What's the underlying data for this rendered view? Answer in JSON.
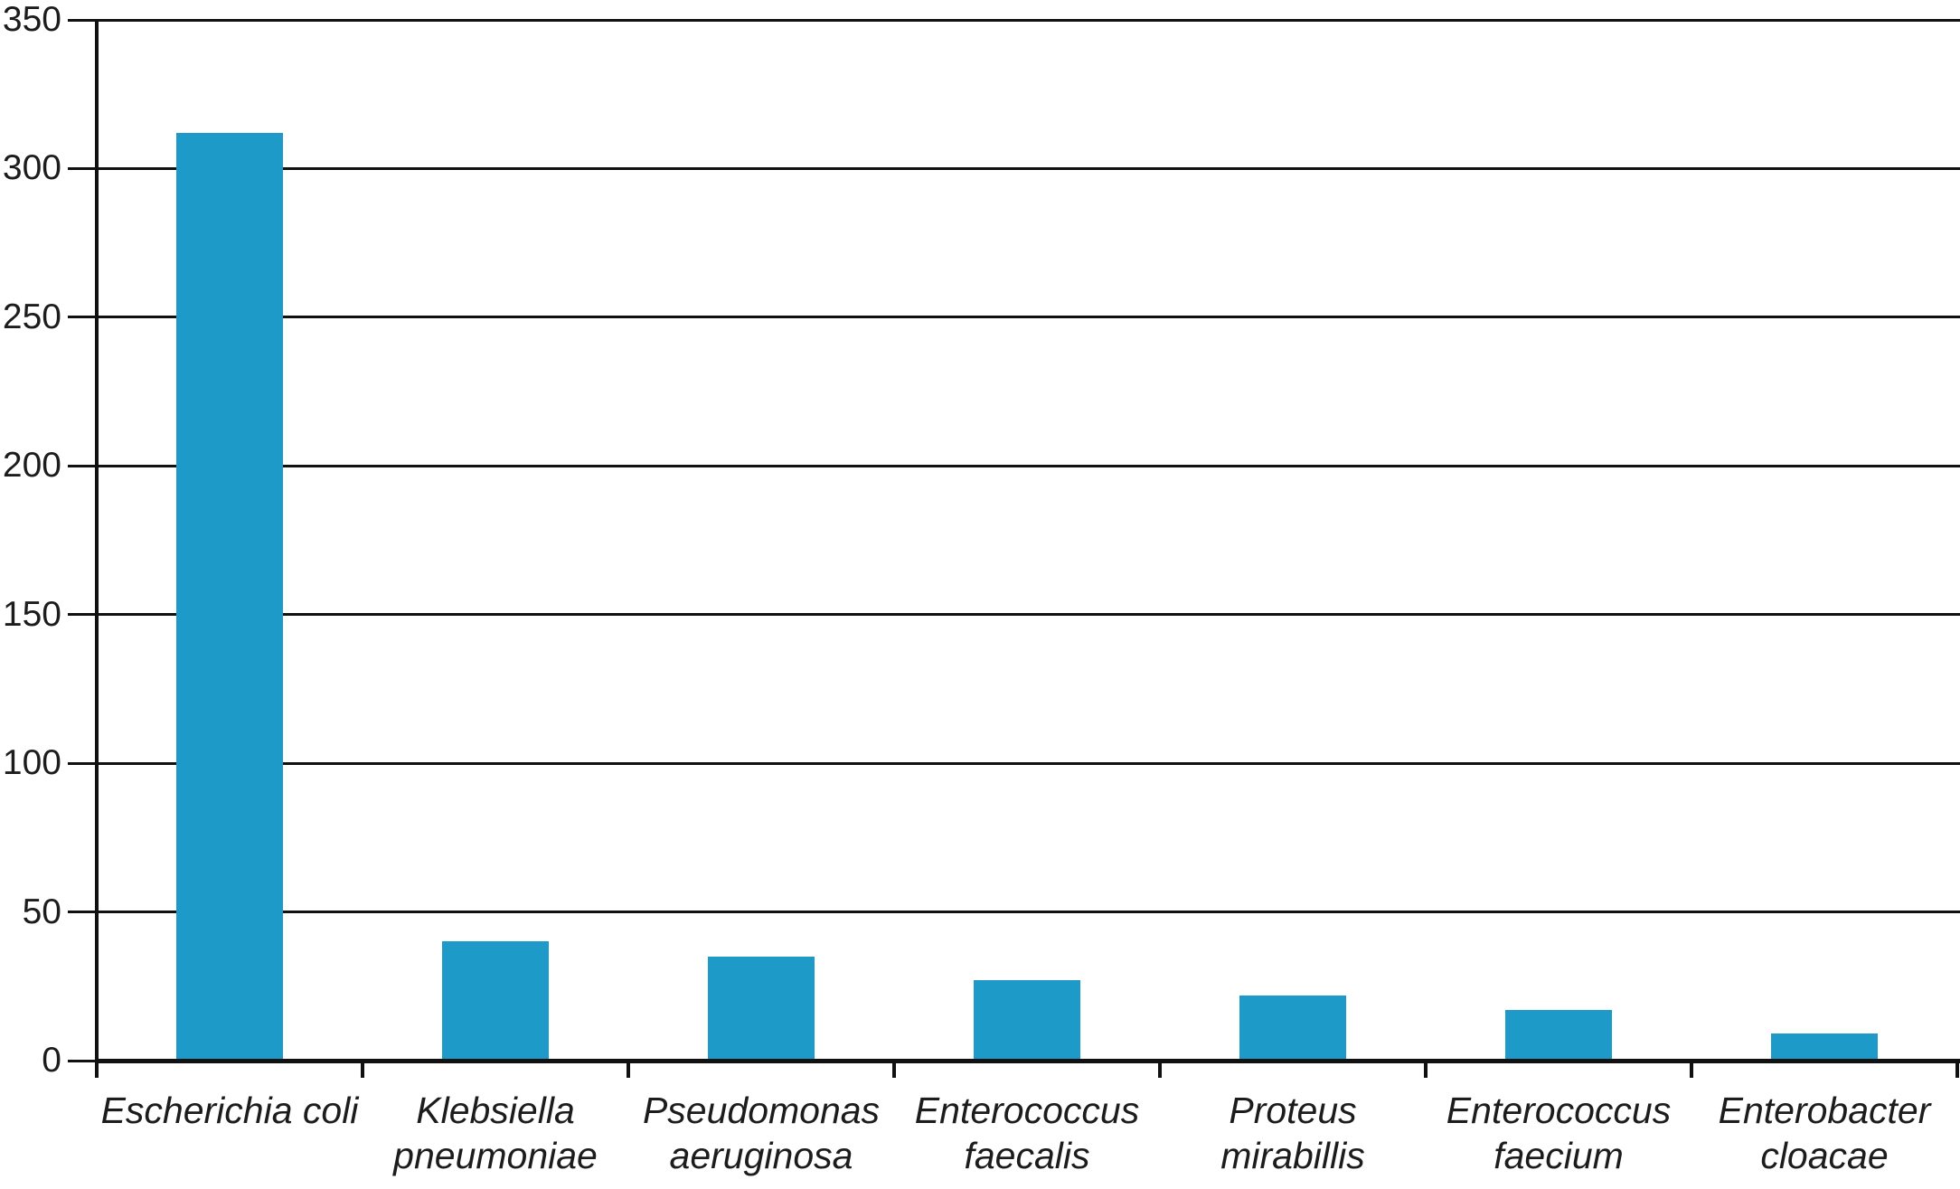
{
  "chart_data": {
    "type": "bar",
    "title": "",
    "xlabel": "",
    "ylabel": "",
    "categories": [
      "Escherichia coli",
      "Klebsiella pneumoniae",
      "Pseudomonas aeruginosa",
      "Enterococcus faecalis",
      "Proteus mirabillis",
      "Enterococcus faecium",
      "Enterobacter cloacae"
    ],
    "tick_labels": [
      "Escherichia coli",
      "Klebsiella\npneumoniae",
      "Pseudomonas\naeruginosa",
      "Enterococcus\nfaecalis",
      "Proteus\nmirabillis",
      "Enterococcus\nfaecium",
      "Enterobacter\ncloacae"
    ],
    "values": [
      312,
      40,
      35,
      27,
      22,
      17,
      9
    ],
    "ylim": [
      0,
      350
    ],
    "yticks": [
      0,
      50,
      100,
      150,
      200,
      250,
      300,
      350
    ],
    "grid": true,
    "legend": "none",
    "tick_label_style": "italic",
    "colors": {
      "bar": "#1E9AC8",
      "axis": "#111111",
      "grid": "#111111",
      "text": "#1c1c1c"
    }
  }
}
